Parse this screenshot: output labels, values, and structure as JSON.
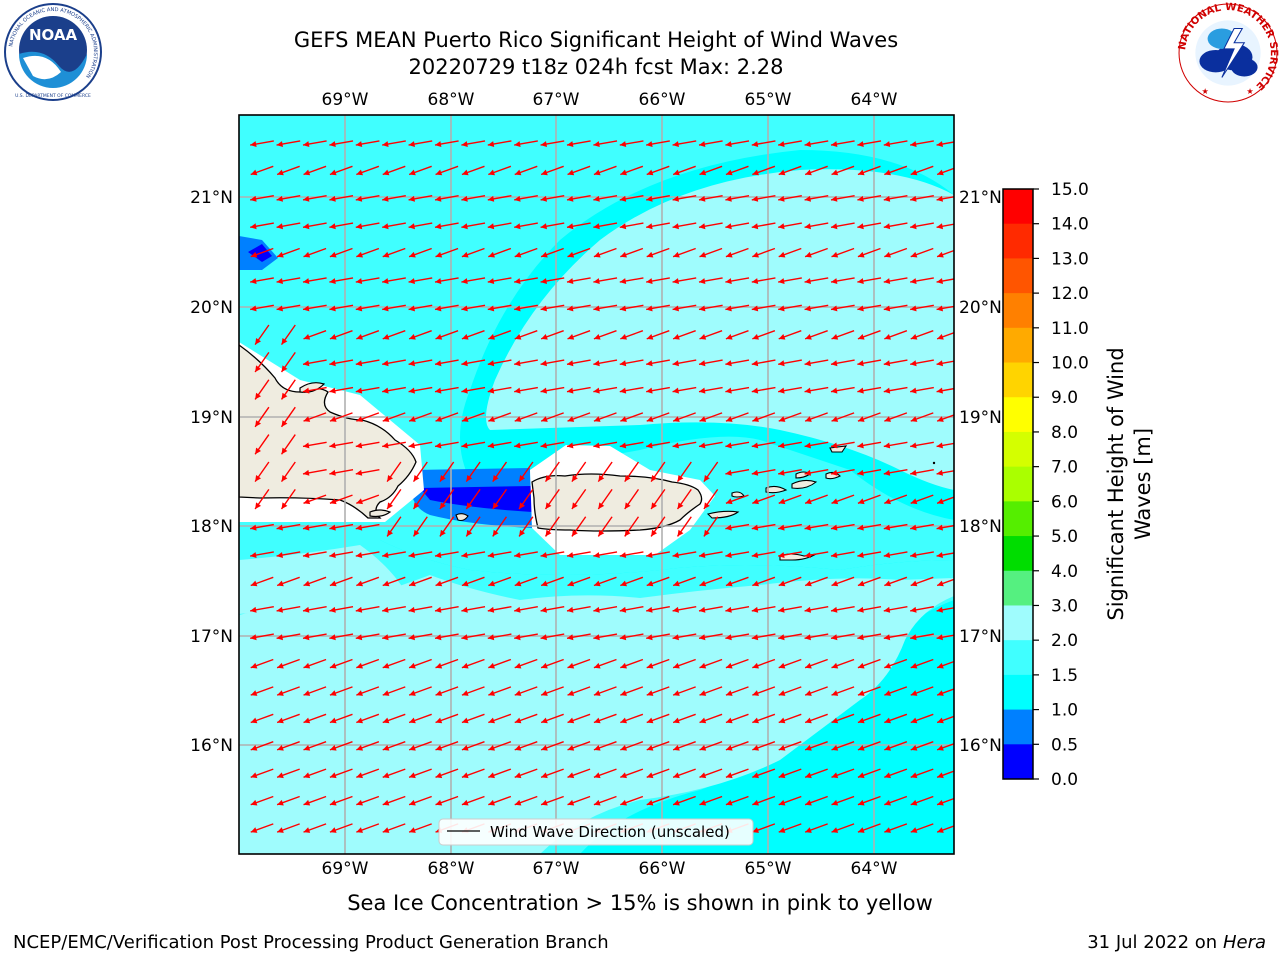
{
  "header": {
    "title_line1": "GEFS MEAN Puerto Rico Significant Height of Wind Waves",
    "title_line2": "20220729 t18z 024h fcst   Max: 2.28"
  },
  "logos": {
    "left": {
      "name": "NOAA",
      "ring_text": "NATIONAL OCEANIC AND ATMOSPHERIC ADMINISTRATION",
      "bottom_text": "U.S. DEPARTMENT OF COMMERCE"
    },
    "right": {
      "ring_text": "NATIONAL WEATHER SERVICE"
    }
  },
  "map": {
    "lon_labels": [
      "69°W",
      "68°W",
      "67°W",
      "66°W",
      "65°W",
      "64°W"
    ],
    "lat_labels": [
      "21°N",
      "20°N",
      "19°N",
      "18°N",
      "17°N",
      "16°N"
    ],
    "vectors": {
      "direction_deg_from_east": [
        190,
        200,
        200,
        235
      ],
      "color": "#ff0000"
    },
    "legend": "Wind Wave Direction (unscaled)",
    "colors": {
      "ocean_main": "#00ffff",
      "ocean_light": "#9ffcfd",
      "ocean_mid": "#40ffff",
      "land": "#efece0",
      "coastline": "#000000",
      "gridline": "#b0b0b0"
    }
  },
  "colorbar": {
    "label_line1": "Significant Height of Wind",
    "label_line2": "Waves [m]",
    "ticks": [
      "15.0",
      "14.0",
      "13.0",
      "12.0",
      "11.0",
      "10.0",
      "9.0",
      "8.0",
      "7.0",
      "6.0",
      "5.0",
      "4.0",
      "3.0",
      "2.0",
      "1.5",
      "1.0",
      "0.5",
      "0.0"
    ],
    "colors_top_to_bottom": [
      "#ff0000",
      "#ff2a00",
      "#ff5500",
      "#ff8000",
      "#ffaa00",
      "#ffd400",
      "#ffff00",
      "#d4ff00",
      "#aaff00",
      "#55ee00",
      "#00dd00",
      "#55f080",
      "#9ffcfd",
      "#40ffff",
      "#00ffff",
      "#0080ff",
      "#0000ff"
    ]
  },
  "footer": {
    "sea_ice_note": "Sea Ice Concentration > 15% is shown in pink to yellow",
    "left": "NCEP/EMC/Verification Post Processing Product Generation Branch",
    "right_prefix": "31 Jul 2022 on ",
    "right_host": "Hera"
  }
}
